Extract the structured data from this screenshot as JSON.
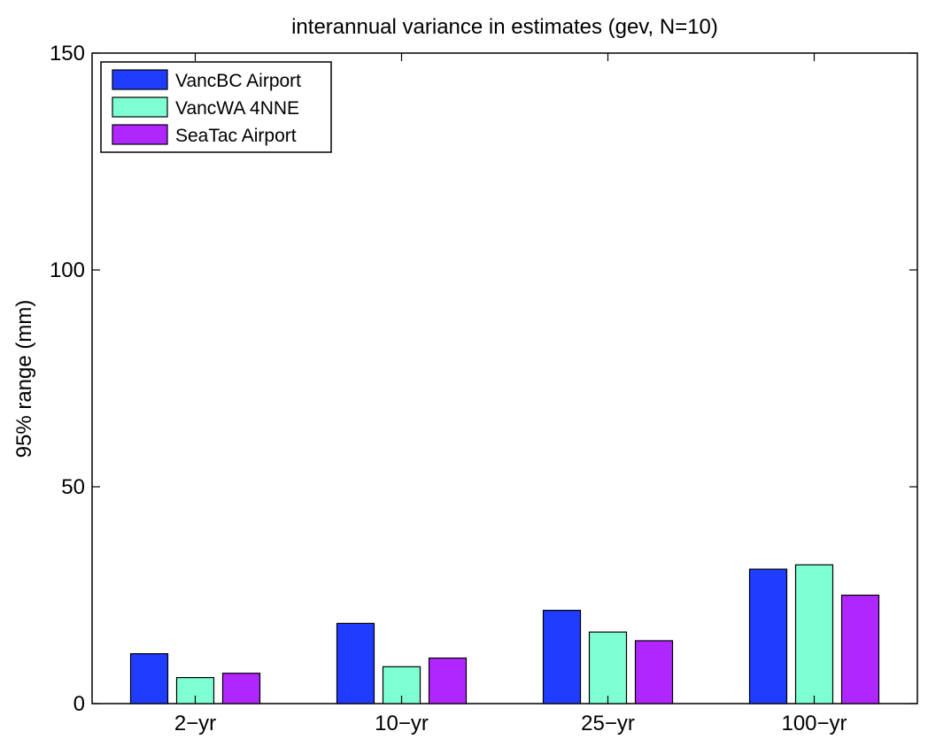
{
  "chart_data": {
    "type": "bar",
    "title": "interannual variance in estimates (gev, N=10)",
    "xlabel": "",
    "ylabel": "95% range (mm)",
    "categories": [
      "2−yr",
      "10−yr",
      "25−yr",
      "100−yr"
    ],
    "ylim": [
      0,
      150
    ],
    "yticks": [
      0,
      50,
      100,
      150
    ],
    "grid": false,
    "legend_position": "top-left",
    "series": [
      {
        "name": "VancBC Airport",
        "color": "#1f3cff",
        "values": [
          11.5,
          18.5,
          21.5,
          31
        ]
      },
      {
        "name": "VancWA 4NNE",
        "color": "#7fffd4",
        "values": [
          6,
          8.5,
          16.5,
          32
        ]
      },
      {
        "name": "SeaTac Airport",
        "color": "#b026ff",
        "values": [
          7,
          10.5,
          14.5,
          25
        ]
      }
    ]
  }
}
